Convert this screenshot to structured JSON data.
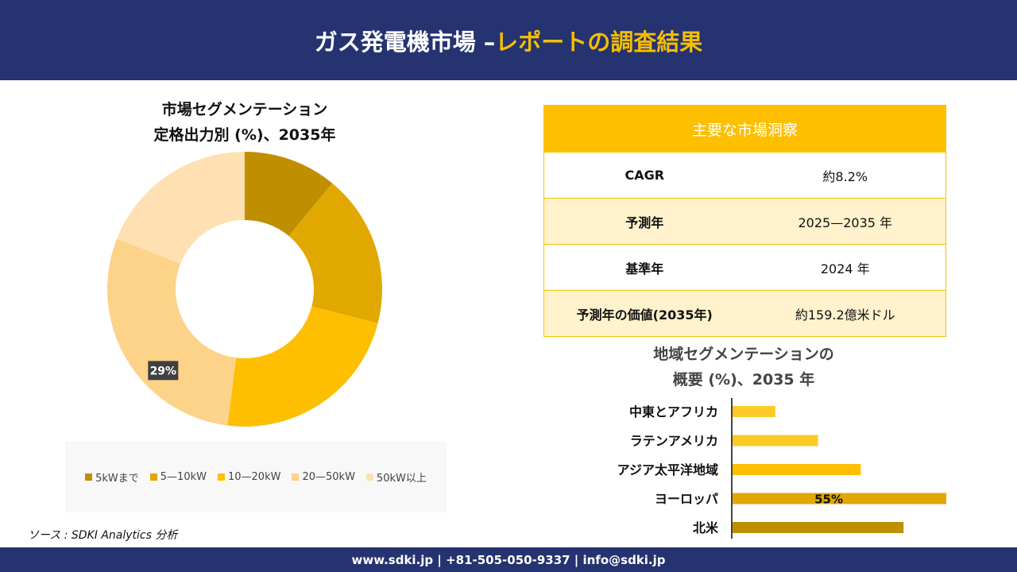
{
  "header": {
    "title_main": "ガス発電機市場 –",
    "title_accent": "レポートの調査結果"
  },
  "donut": {
    "title_line1": "市場セグメンテーション",
    "title_line2": "定格出力別 (%)、2035年"
  },
  "insights": {
    "title": "主要な市場洞察",
    "rows": [
      {
        "label": "CAGR",
        "value": "約8.2%"
      },
      {
        "label": "予測年",
        "value": "2025—2035 年"
      },
      {
        "label": "基準年",
        "value": "2024 年"
      },
      {
        "label": "予測年の価値(2035年)",
        "value": "約159.2億米ドル"
      }
    ]
  },
  "regional": {
    "title_line1": "地域セグメンテーションの",
    "title_line2": "概要 (%)、2035 年"
  },
  "source": "ソース : SDKI Analytics 分析",
  "footer": "www.sdki.jp | +81-505-050-9337 | info@sdki.jp",
  "chart_data": [
    {
      "type": "pie",
      "subtype": "donut",
      "title": "市場セグメンテーション 定格出力別 (%)、2035年",
      "categories": [
        "5kWまで",
        "5—10kW",
        "10—20kW",
        "20—50kW",
        "50kW以上"
      ],
      "values": [
        11,
        18,
        23,
        29,
        19
      ],
      "colors": [
        "#bf8f00",
        "#e0a800",
        "#fdbf00",
        "#fdd289",
        "#fee0b3"
      ],
      "data_labels": [
        null,
        null,
        null,
        "29%",
        null
      ],
      "legend": "bottom"
    },
    {
      "type": "bar",
      "orientation": "horizontal",
      "title": "地域セグメンテーションの 概要 (%)、2035 年",
      "categories": [
        "中東とアフリカ",
        "ラテンアメリカ",
        "アジア太平洋地域",
        "ヨーロッパ",
        "北米"
      ],
      "values": [
        11,
        22,
        33,
        55,
        44
      ],
      "colors": [
        "#ffca28",
        "#ffca28",
        "#fdbf00",
        "#e0a800",
        "#bf8f00"
      ],
      "data_labels": [
        null,
        null,
        null,
        "55%",
        null
      ],
      "xlim": [
        0,
        55
      ]
    }
  ]
}
